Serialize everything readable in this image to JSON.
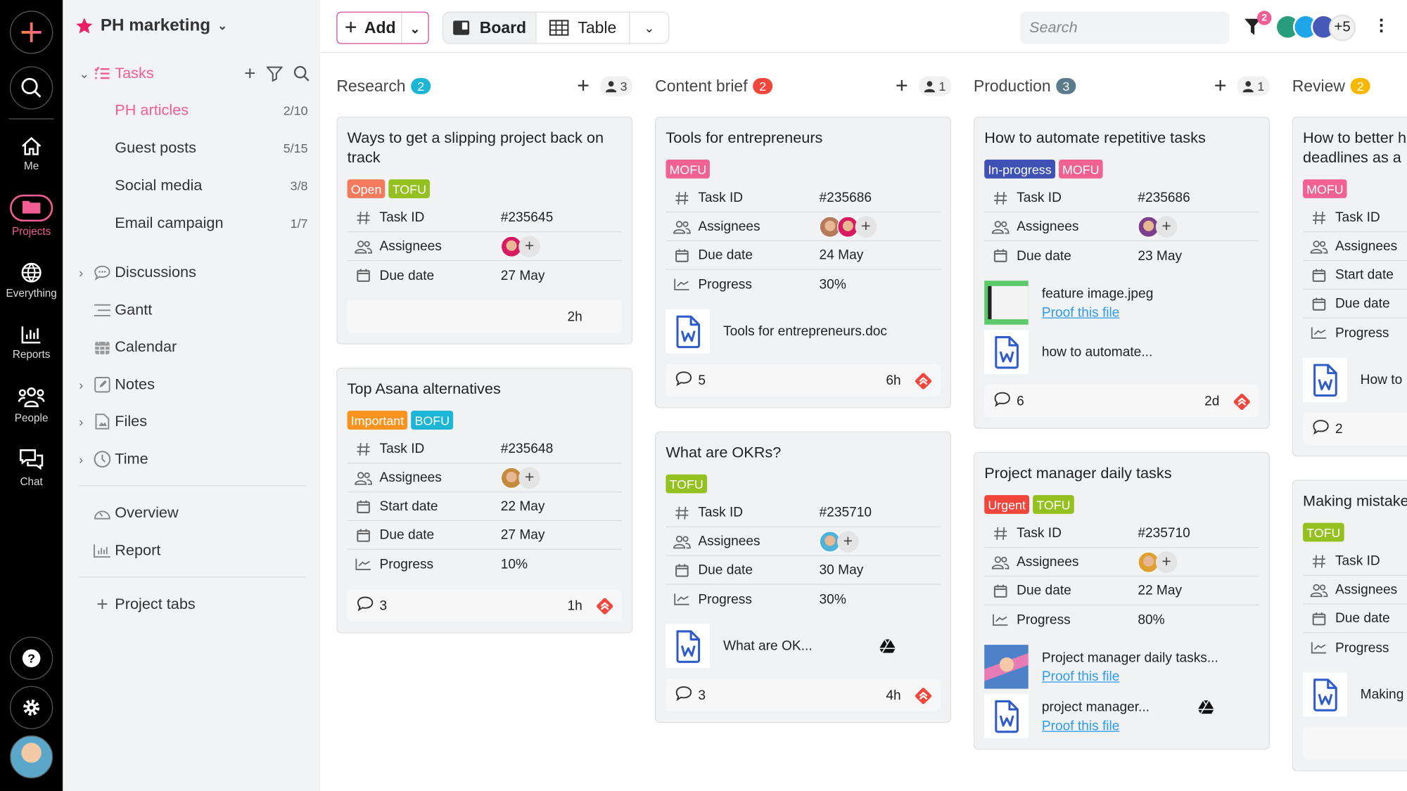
{
  "rail": {
    "items": [
      {
        "label": "Me",
        "icon": "home-icon"
      },
      {
        "label": "Projects",
        "icon": "folder-icon",
        "active": true
      },
      {
        "label": "Everything",
        "icon": "globe-icon"
      },
      {
        "label": "Reports",
        "icon": "bar-chart-icon"
      },
      {
        "label": "People",
        "icon": "people-icon"
      },
      {
        "label": "Chat",
        "icon": "chat-icon"
      }
    ]
  },
  "sidebar": {
    "project_title": "PH marketing",
    "tasks_label": "Tasks",
    "task_lists": [
      {
        "label": "PH articles",
        "count": "2/10",
        "active": true
      },
      {
        "label": "Guest posts",
        "count": "5/15"
      },
      {
        "label": "Social media",
        "count": "3/8"
      },
      {
        "label": "Email campaign",
        "count": "1/7"
      }
    ],
    "sections": [
      {
        "label": "Discussions",
        "icon": "discussion-icon",
        "expandable": true
      },
      {
        "label": "Gantt",
        "icon": "gantt-icon",
        "expandable": false
      },
      {
        "label": "Calendar",
        "icon": "calendar-icon",
        "expandable": false
      },
      {
        "label": "Notes",
        "icon": "notes-icon",
        "expandable": true
      },
      {
        "label": "Files",
        "icon": "files-icon",
        "expandable": true
      },
      {
        "label": "Time",
        "icon": "clock-icon",
        "expandable": true
      }
    ],
    "extra": [
      {
        "label": "Overview",
        "icon": "gauge-icon"
      },
      {
        "label": "Report",
        "icon": "report-icon"
      }
    ],
    "project_tabs_label": "Project tabs"
  },
  "toolbar": {
    "add_label": "Add",
    "board_label": "Board",
    "table_label": "Table",
    "search_placeholder": "Search",
    "filter_count": "2",
    "members_more": "+5"
  },
  "colors": {
    "accent": "#f25e94",
    "priority": "#f0463c",
    "link": "#2e9bf0"
  },
  "columns": [
    {
      "name": "Research",
      "count": "2",
      "badge_color": "#1cb5d5",
      "members": "3",
      "cards": [
        {
          "title": "Ways to get a slipping project back on track",
          "tags": [
            {
              "label": "Open",
              "color": "#f47a5e"
            },
            {
              "label": "TOFU",
              "color": "#94c11f"
            }
          ],
          "fields": [
            {
              "icon": "hash",
              "label": "Task ID",
              "value": "#235645"
            },
            {
              "icon": "people",
              "label": "Assignees",
              "avatars": [
                "#d81b60"
              ]
            },
            {
              "icon": "cal",
              "label": "Due date",
              "value": "27 May"
            }
          ],
          "footer": {
            "time": "2h"
          }
        },
        {
          "title": "Top Asana alternatives",
          "tags": [
            {
              "label": "Important",
              "color": "#f7931e"
            },
            {
              "label": "BOFU",
              "color": "#1cb5d5"
            }
          ],
          "fields": [
            {
              "icon": "hash",
              "label": "Task ID",
              "value": "#235648"
            },
            {
              "icon": "people",
              "label": "Assignees",
              "avatars": [
                "#c58b3c"
              ]
            },
            {
              "icon": "cal",
              "label": "Start date",
              "value": "22 May"
            },
            {
              "icon": "cal",
              "label": "Due date",
              "value": "27 May"
            },
            {
              "icon": "prog",
              "label": "Progress",
              "value": "10%"
            }
          ],
          "footer": {
            "comments": "3",
            "time": "1h",
            "priority": true
          }
        }
      ]
    },
    {
      "name": "Content brief",
      "count": "2",
      "badge_color": "#f0463c",
      "members": "1",
      "cards": [
        {
          "title": "Tools for entrepreneurs",
          "tags": [
            {
              "label": "MOFU",
              "color": "#f06292"
            }
          ],
          "fields": [
            {
              "icon": "hash",
              "label": "Task ID",
              "value": "#235686"
            },
            {
              "icon": "people",
              "label": "Assignees",
              "avatars": [
                "#b57b5a",
                "#d81b60"
              ]
            },
            {
              "icon": "cal",
              "label": "Due date",
              "value": "24 May"
            },
            {
              "icon": "prog",
              "label": "Progress",
              "value": "30%"
            }
          ],
          "attachments": [
            {
              "name": "Tools for entrepreneurs.doc",
              "type": "doc"
            }
          ],
          "footer": {
            "comments": "5",
            "time": "6h",
            "priority": true
          }
        },
        {
          "title": "What are OKRs?",
          "tags": [
            {
              "label": "TOFU",
              "color": "#94c11f"
            }
          ],
          "fields": [
            {
              "icon": "hash",
              "label": "Task ID",
              "value": "#235710"
            },
            {
              "icon": "people",
              "label": "Assignees",
              "avatars": [
                "#4fb3d9"
              ]
            },
            {
              "icon": "cal",
              "label": "Due date",
              "value": "30 May"
            },
            {
              "icon": "prog",
              "label": "Progress",
              "value": "30%"
            }
          ],
          "attachments": [
            {
              "name": "What are OK...",
              "type": "doc",
              "drive": true
            }
          ],
          "footer": {
            "comments": "3",
            "time": "4h",
            "priority": true
          }
        }
      ]
    },
    {
      "name": "Production",
      "count": "3",
      "badge_color": "#5b7b8c",
      "members": "1",
      "cards": [
        {
          "title": "How to automate repetitive tasks",
          "tags": [
            {
              "label": "In-progress",
              "color": "#3f51b5"
            },
            {
              "label": "MOFU",
              "color": "#f06292"
            }
          ],
          "fields": [
            {
              "icon": "hash",
              "label": "Task ID",
              "value": "#235686"
            },
            {
              "icon": "people",
              "label": "Assignees",
              "avatars": [
                "#7b3f8c"
              ]
            },
            {
              "icon": "cal",
              "label": "Due date",
              "value": "23 May"
            }
          ],
          "attachments": [
            {
              "name": "feature image.jpeg",
              "type": "img-green",
              "proof": "Proof this file"
            },
            {
              "name": "how to automate...",
              "type": "doc"
            }
          ],
          "footer": {
            "comments": "6",
            "time": "2d",
            "priority": true
          }
        },
        {
          "title": "Project manager daily tasks",
          "tags": [
            {
              "label": "Urgent",
              "color": "#f0463c"
            },
            {
              "label": "TOFU",
              "color": "#94c11f"
            }
          ],
          "fields": [
            {
              "icon": "hash",
              "label": "Task ID",
              "value": "#235710"
            },
            {
              "icon": "people",
              "label": "Assignees",
              "avatars": [
                "#e0a030"
              ]
            },
            {
              "icon": "cal",
              "label": "Due date",
              "value": "22 May"
            },
            {
              "icon": "prog",
              "label": "Progress",
              "value": "80%"
            }
          ],
          "attachments": [
            {
              "name": "Project manager daily tasks...",
              "type": "img-blue",
              "proof": "Proof this file"
            },
            {
              "name": "project manager...",
              "type": "doc",
              "proof": "Proof this file",
              "drive": true
            }
          ]
        }
      ]
    },
    {
      "name": "Review",
      "count": "2",
      "badge_color": "#f5b800",
      "cards": [
        {
          "title": "How to better h\ndeadlines as a",
          "tags": [
            {
              "label": "MOFU",
              "color": "#f06292"
            }
          ],
          "fields": [
            {
              "icon": "hash",
              "label": "Task ID"
            },
            {
              "icon": "people",
              "label": "Assignees"
            },
            {
              "icon": "cal",
              "label": "Start date"
            },
            {
              "icon": "cal",
              "label": "Due date"
            },
            {
              "icon": "prog",
              "label": "Progress"
            }
          ],
          "attachments": [
            {
              "name": "How to",
              "type": "doc"
            }
          ],
          "footer": {
            "comments": "2"
          }
        },
        {
          "title": "Making mistake",
          "tags": [
            {
              "label": "TOFU",
              "color": "#94c11f"
            }
          ],
          "fields": [
            {
              "icon": "hash",
              "label": "Task ID"
            },
            {
              "icon": "people",
              "label": "Assignees"
            },
            {
              "icon": "cal",
              "label": "Due date"
            },
            {
              "icon": "prog",
              "label": "Progress"
            }
          ],
          "attachments": [
            {
              "name": "Making",
              "type": "doc"
            }
          ],
          "footer": {}
        }
      ]
    }
  ]
}
